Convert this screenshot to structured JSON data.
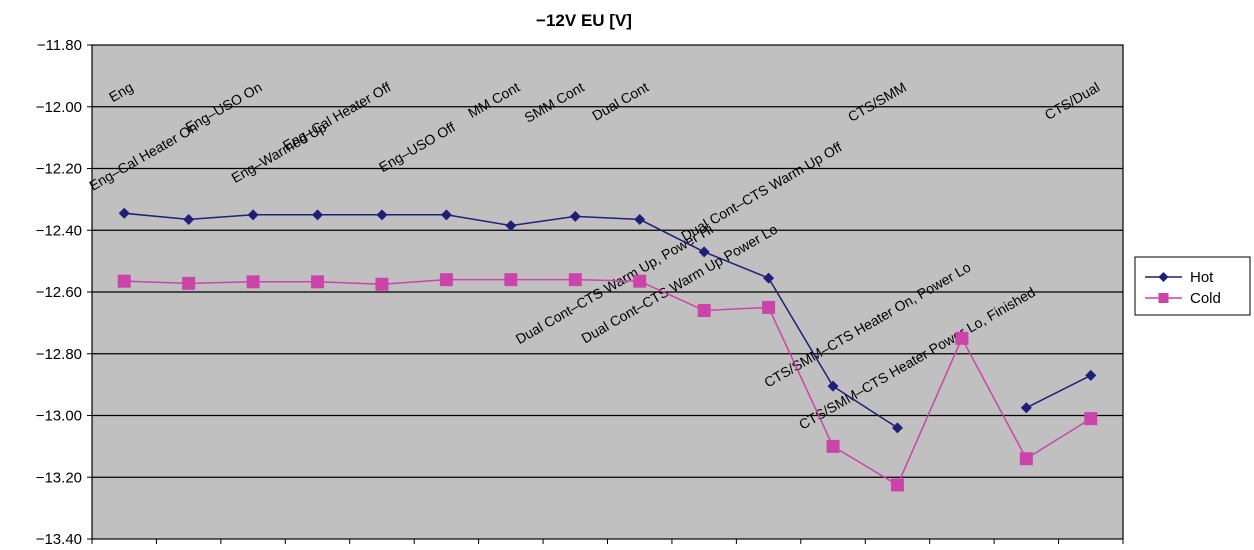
{
  "chart_data": {
    "type": "line",
    "title": "−12V EU [V]",
    "xlabel": "",
    "ylabel": "",
    "ylim": [
      -13.4,
      -11.8
    ],
    "yticks": [
      "-11.80",
      "-12.00",
      "-12.20",
      "-12.40",
      "-12.60",
      "-12.80",
      "-13.00",
      "-13.20",
      "-13.40"
    ],
    "grid": true,
    "legend_position": "right",
    "categories": [
      "Eng",
      "Eng–Cal Heater On",
      "Eng–USO On",
      "Eng–Warmed Up",
      "Eng–Cal Heater Off",
      "Eng–USO Off",
      "MM Cont",
      "SMM Cont",
      "Dual Cont",
      "Dual Cont–CTS Warm Up, Power Hi",
      "Dual Cont–CTS Warm Up Power Lo",
      "Dual Cont–CTS Warm Up Off",
      "CTS/SMM",
      "CTS/SMM–CTS Heater On, Power Lo",
      "CTS/SMM–CTS Heater Power Lo, Finished",
      "CTS/Dual"
    ],
    "series": [
      {
        "name": "Hot",
        "color": "#1F1F7A",
        "marker": "diamond",
        "values": [
          -12.345,
          -12.365,
          -12.35,
          -12.35,
          -12.35,
          -12.35,
          -12.385,
          -12.355,
          -12.365,
          -12.47,
          -12.555,
          -12.905,
          -13.04,
          null,
          -12.975,
          -12.87
        ]
      },
      {
        "name": "Cold",
        "color": "#CC44AA",
        "marker": "square",
        "values": [
          -12.565,
          -12.572,
          -12.567,
          -12.567,
          -12.575,
          -12.56,
          -12.56,
          -12.56,
          -12.565,
          -12.66,
          -12.65,
          -13.1,
          -13.225,
          -12.75,
          -13.14,
          -13.01
        ]
      }
    ]
  }
}
